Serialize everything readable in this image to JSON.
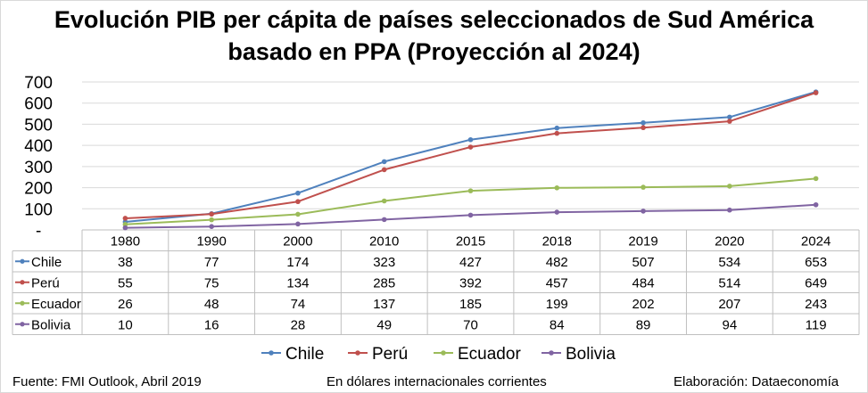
{
  "title_line1": "Evolución PIB per cápita de países seleccionados de Sud América",
  "title_line2": "basado en PPA (Proyección al 2024)",
  "footer": {
    "source": "Fuente: FMI Outlook, Abril 2019",
    "units": "En dólares internacionales corrientes",
    "credit": "Elaboración: Dataeconomía"
  },
  "chart_data": {
    "type": "line",
    "categories": [
      "1980",
      "1990",
      "2000",
      "2010",
      "2015",
      "2018",
      "2019",
      "2020",
      "2024"
    ],
    "yticks": [
      "-",
      "100",
      "200",
      "300",
      "400",
      "500",
      "600",
      "700"
    ],
    "ylim": [
      0,
      700
    ],
    "grid": true,
    "legend_position": "bottom",
    "data_table": true,
    "series": [
      {
        "name": "Chile",
        "color": "#4f81bd",
        "values": [
          38,
          77,
          174,
          323,
          427,
          482,
          507,
          534,
          653
        ]
      },
      {
        "name": "Perú",
        "color": "#c0504d",
        "values": [
          55,
          75,
          134,
          285,
          392,
          457,
          484,
          514,
          649
        ]
      },
      {
        "name": "Ecuador",
        "color": "#9bbb59",
        "values": [
          26,
          48,
          74,
          137,
          185,
          199,
          202,
          207,
          243
        ]
      },
      {
        "name": "Bolivia",
        "color": "#8064a2",
        "values": [
          10,
          16,
          28,
          49,
          70,
          84,
          89,
          94,
          119
        ]
      }
    ]
  }
}
